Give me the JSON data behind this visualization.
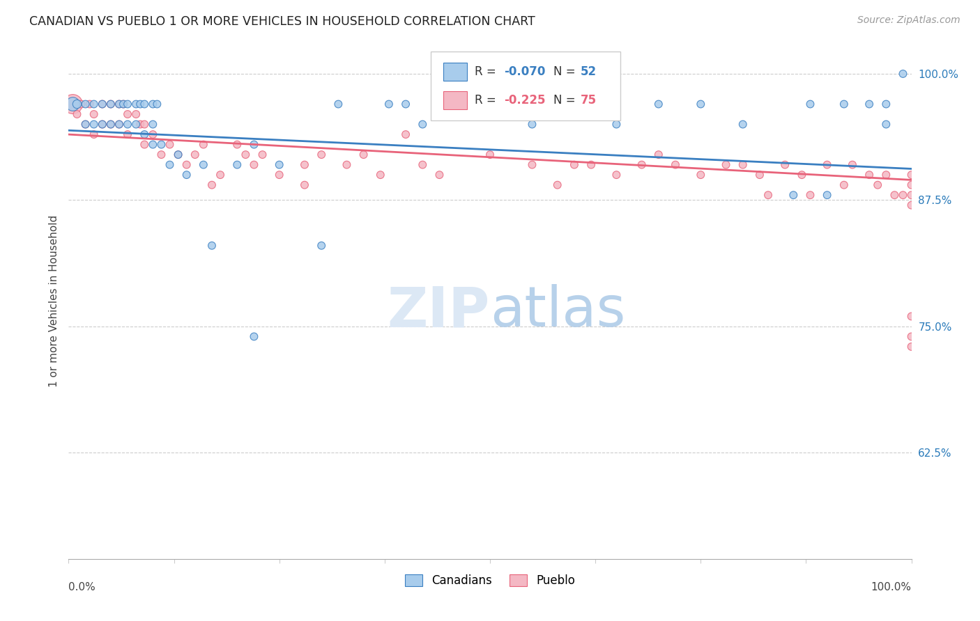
{
  "title": "CANADIAN VS PUEBLO 1 OR MORE VEHICLES IN HOUSEHOLD CORRELATION CHART",
  "source": "Source: ZipAtlas.com",
  "ylabel": "1 or more Vehicles in Household",
  "ytick_labels": [
    "100.0%",
    "87.5%",
    "75.0%",
    "62.5%"
  ],
  "ytick_values": [
    1.0,
    0.875,
    0.75,
    0.625
  ],
  "xlim": [
    0.0,
    1.0
  ],
  "ylim": [
    0.52,
    1.03
  ],
  "legend_r_blue": "-0.070",
  "legend_n_blue": "52",
  "legend_r_pink": "-0.225",
  "legend_n_pink": "75",
  "legend_label_blue": "Canadians",
  "legend_label_pink": "Pueblo",
  "blue_color": "#a8ccec",
  "pink_color": "#f4b8c4",
  "trendline_blue": "#3a7fc1",
  "trendline_pink": "#e8637a",
  "blue_scatter_x": [
    0.005,
    0.01,
    0.02,
    0.02,
    0.03,
    0.03,
    0.04,
    0.04,
    0.05,
    0.05,
    0.06,
    0.06,
    0.065,
    0.07,
    0.07,
    0.08,
    0.08,
    0.085,
    0.09,
    0.09,
    0.1,
    0.1,
    0.1,
    0.105,
    0.11,
    0.12,
    0.13,
    0.14,
    0.16,
    0.17,
    0.2,
    0.22,
    0.22,
    0.25,
    0.3,
    0.32,
    0.38,
    0.4,
    0.42,
    0.55,
    0.65,
    0.7,
    0.75,
    0.8,
    0.86,
    0.88,
    0.9,
    0.92,
    0.95,
    0.97,
    0.97,
    0.99
  ],
  "blue_scatter_y": [
    0.97,
    0.97,
    0.97,
    0.95,
    0.97,
    0.95,
    0.97,
    0.95,
    0.97,
    0.95,
    0.97,
    0.95,
    0.97,
    0.97,
    0.95,
    0.97,
    0.95,
    0.97,
    0.97,
    0.94,
    0.97,
    0.95,
    0.93,
    0.97,
    0.93,
    0.91,
    0.92,
    0.9,
    0.91,
    0.83,
    0.91,
    0.93,
    0.74,
    0.91,
    0.83,
    0.97,
    0.97,
    0.97,
    0.95,
    0.95,
    0.95,
    0.97,
    0.97,
    0.95,
    0.88,
    0.97,
    0.88,
    0.97,
    0.97,
    0.97,
    0.95,
    1.0
  ],
  "blue_scatter_sizes": [
    200,
    80,
    60,
    60,
    60,
    60,
    60,
    60,
    60,
    60,
    60,
    60,
    60,
    60,
    60,
    60,
    60,
    60,
    60,
    60,
    60,
    60,
    60,
    60,
    60,
    60,
    60,
    60,
    60,
    60,
    60,
    60,
    60,
    60,
    60,
    60,
    60,
    60,
    60,
    60,
    60,
    60,
    60,
    60,
    60,
    60,
    60,
    60,
    60,
    60,
    60,
    60
  ],
  "pink_scatter_x": [
    0.005,
    0.01,
    0.015,
    0.02,
    0.025,
    0.03,
    0.03,
    0.04,
    0.04,
    0.05,
    0.05,
    0.06,
    0.06,
    0.065,
    0.07,
    0.07,
    0.08,
    0.085,
    0.09,
    0.09,
    0.1,
    0.11,
    0.12,
    0.13,
    0.14,
    0.15,
    0.16,
    0.17,
    0.18,
    0.2,
    0.21,
    0.22,
    0.23,
    0.25,
    0.28,
    0.28,
    0.3,
    0.33,
    0.35,
    0.37,
    0.4,
    0.42,
    0.44,
    0.5,
    0.55,
    0.58,
    0.6,
    0.62,
    0.65,
    0.68,
    0.7,
    0.72,
    0.75,
    0.78,
    0.8,
    0.82,
    0.83,
    0.85,
    0.87,
    0.88,
    0.9,
    0.92,
    0.93,
    0.95,
    0.96,
    0.97,
    0.98,
    0.99,
    1.0,
    1.0,
    1.0,
    1.0,
    1.0,
    1.0,
    1.0
  ],
  "pink_scatter_y": [
    0.97,
    0.96,
    0.97,
    0.95,
    0.97,
    0.96,
    0.94,
    0.97,
    0.95,
    0.97,
    0.95,
    0.97,
    0.95,
    0.97,
    0.96,
    0.94,
    0.96,
    0.95,
    0.95,
    0.93,
    0.94,
    0.92,
    0.93,
    0.92,
    0.91,
    0.92,
    0.93,
    0.89,
    0.9,
    0.93,
    0.92,
    0.91,
    0.92,
    0.9,
    0.91,
    0.89,
    0.92,
    0.91,
    0.92,
    0.9,
    0.94,
    0.91,
    0.9,
    0.92,
    0.91,
    0.89,
    0.91,
    0.91,
    0.9,
    0.91,
    0.92,
    0.91,
    0.9,
    0.91,
    0.91,
    0.9,
    0.88,
    0.91,
    0.9,
    0.88,
    0.91,
    0.89,
    0.91,
    0.9,
    0.89,
    0.9,
    0.88,
    0.88,
    0.88,
    0.87,
    0.9,
    0.89,
    0.76,
    0.73,
    0.74
  ],
  "pink_scatter_sizes": [
    400,
    60,
    60,
    60,
    60,
    60,
    60,
    60,
    60,
    60,
    60,
    60,
    60,
    60,
    60,
    60,
    60,
    60,
    60,
    60,
    60,
    60,
    60,
    60,
    60,
    60,
    60,
    60,
    60,
    60,
    60,
    60,
    60,
    60,
    60,
    60,
    60,
    60,
    60,
    60,
    60,
    60,
    60,
    60,
    60,
    60,
    60,
    60,
    60,
    60,
    60,
    60,
    60,
    60,
    60,
    60,
    60,
    60,
    60,
    60,
    60,
    60,
    60,
    60,
    60,
    60,
    60,
    60,
    60,
    60,
    60,
    60,
    60,
    60,
    60
  ],
  "trendline_blue_endpoints": [
    0.0,
    0.944,
    1.0,
    0.906
  ],
  "trendline_pink_endpoints": [
    0.0,
    0.94,
    1.0,
    0.895
  ]
}
